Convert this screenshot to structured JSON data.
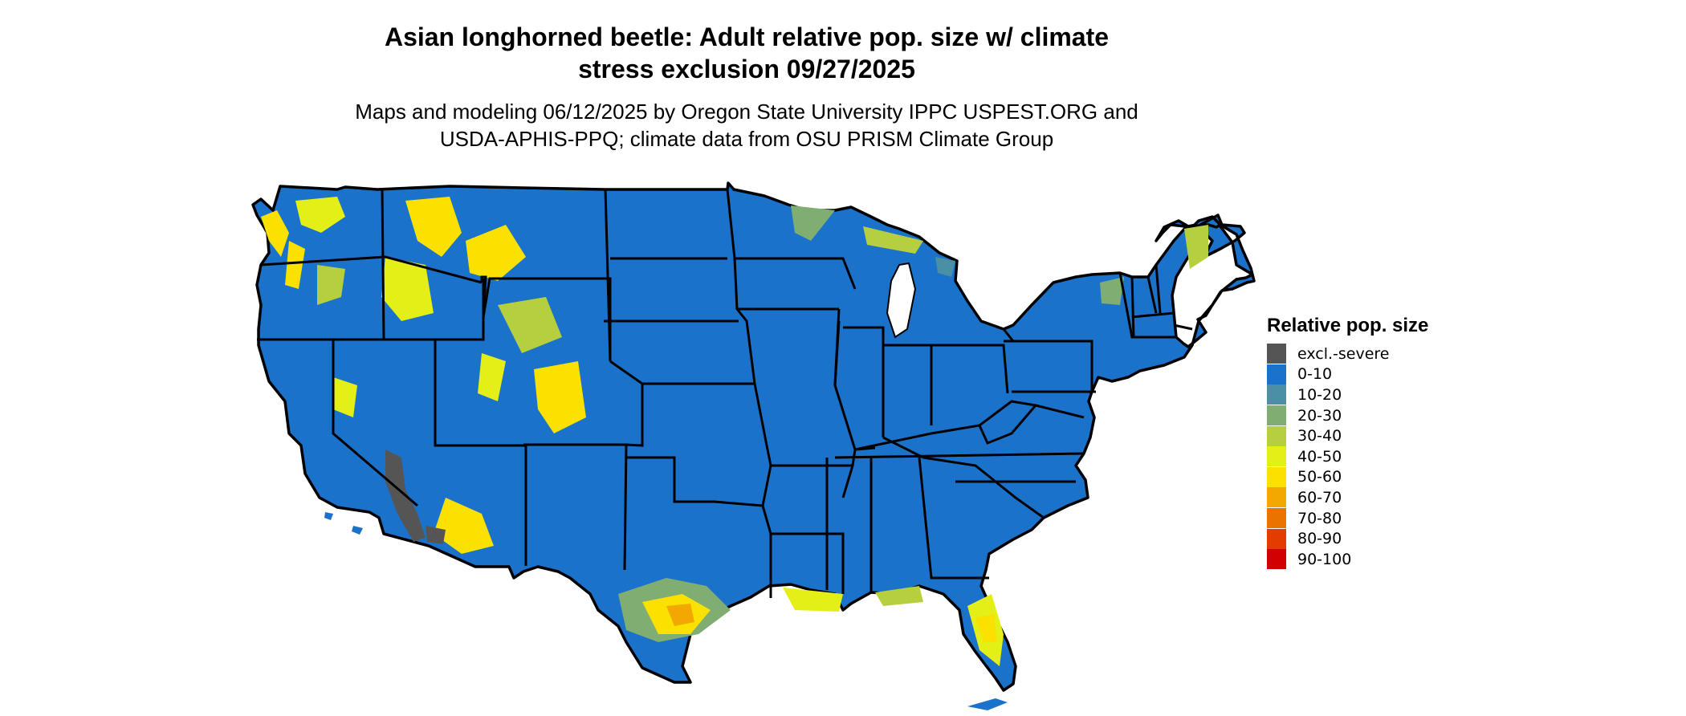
{
  "header": {
    "title_line1": "Asian longhorned beetle: Adult relative pop. size w/ climate",
    "title_line2": "stress exclusion 09/27/2025",
    "subtitle_line1": "Maps and modeling 06/12/2025 by Oregon State University IPPC USPEST.ORG and",
    "subtitle_line2": "USDA-APHIS-PPQ; climate data from OSU PRISM Climate Group"
  },
  "colors": {
    "base": "#1b72cb",
    "excluded": "#555555",
    "border": "#000000"
  },
  "legend": {
    "title": "Relative pop. size",
    "items": [
      {
        "label": "excl.-severe",
        "color": "#555555"
      },
      {
        "label": "0-10",
        "color": "#1b72cb"
      },
      {
        "label": "10-20",
        "color": "#4a8fa4"
      },
      {
        "label": "20-30",
        "color": "#7fad72"
      },
      {
        "label": "30-40",
        "color": "#b5cf3e"
      },
      {
        "label": "40-50",
        "color": "#e4ee17"
      },
      {
        "label": "50-60",
        "color": "#fae100"
      },
      {
        "label": "60-70",
        "color": "#f2a800"
      },
      {
        "label": "70-80",
        "color": "#ea7300"
      },
      {
        "label": "80-90",
        "color": "#e23c00"
      },
      {
        "label": "90-100",
        "color": "#d30000"
      }
    ]
  }
}
